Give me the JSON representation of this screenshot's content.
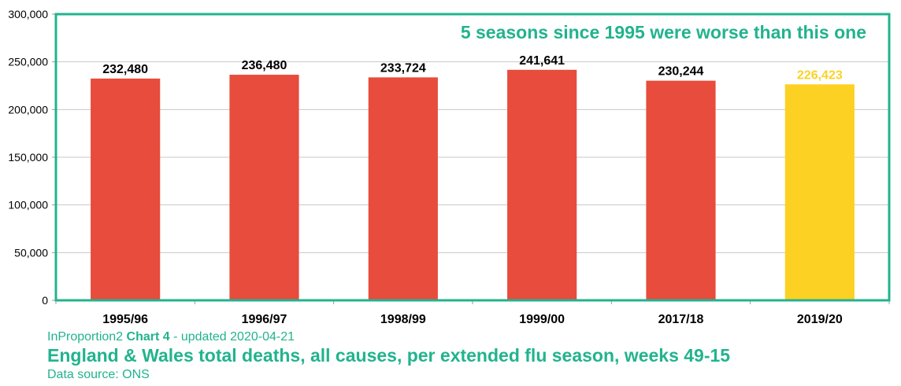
{
  "colors": {
    "accent": "#22b38e",
    "bar": "#e74c3c",
    "highlight": "#fdd124",
    "grid": "#c8c8c8"
  },
  "footer": {
    "brand": "InProportion2",
    "chart_id": "Chart 4",
    "updated": " - updated 2020-04-21",
    "title": "England & Wales total deaths, all causes, per extended flu season, weeks 49-15",
    "source": "Data source: ONS"
  },
  "chart_data": {
    "type": "bar",
    "title": "England & Wales total deaths, all causes, per extended flu season, weeks 49-15",
    "annotation": "5 seasons since 1995 were worse than this one",
    "categories": [
      "1995/96",
      "1996/97",
      "1998/99",
      "1999/00",
      "2017/18",
      "2019/20"
    ],
    "values": [
      232480,
      236480,
      233724,
      241641,
      230244,
      226423
    ],
    "data_labels": [
      "232,480",
      "236,480",
      "233,724",
      "241,641",
      "230,244",
      "226,423"
    ],
    "highlight_index": 5,
    "ylim": [
      0,
      300000
    ],
    "yticks": [
      0,
      50000,
      100000,
      150000,
      200000,
      250000,
      300000
    ],
    "ytick_labels": [
      "0",
      "50,000",
      "100,000",
      "150,000",
      "200,000",
      "250,000",
      "300,000"
    ],
    "grid": true,
    "legend": "none",
    "xlabel": "",
    "ylabel": ""
  }
}
